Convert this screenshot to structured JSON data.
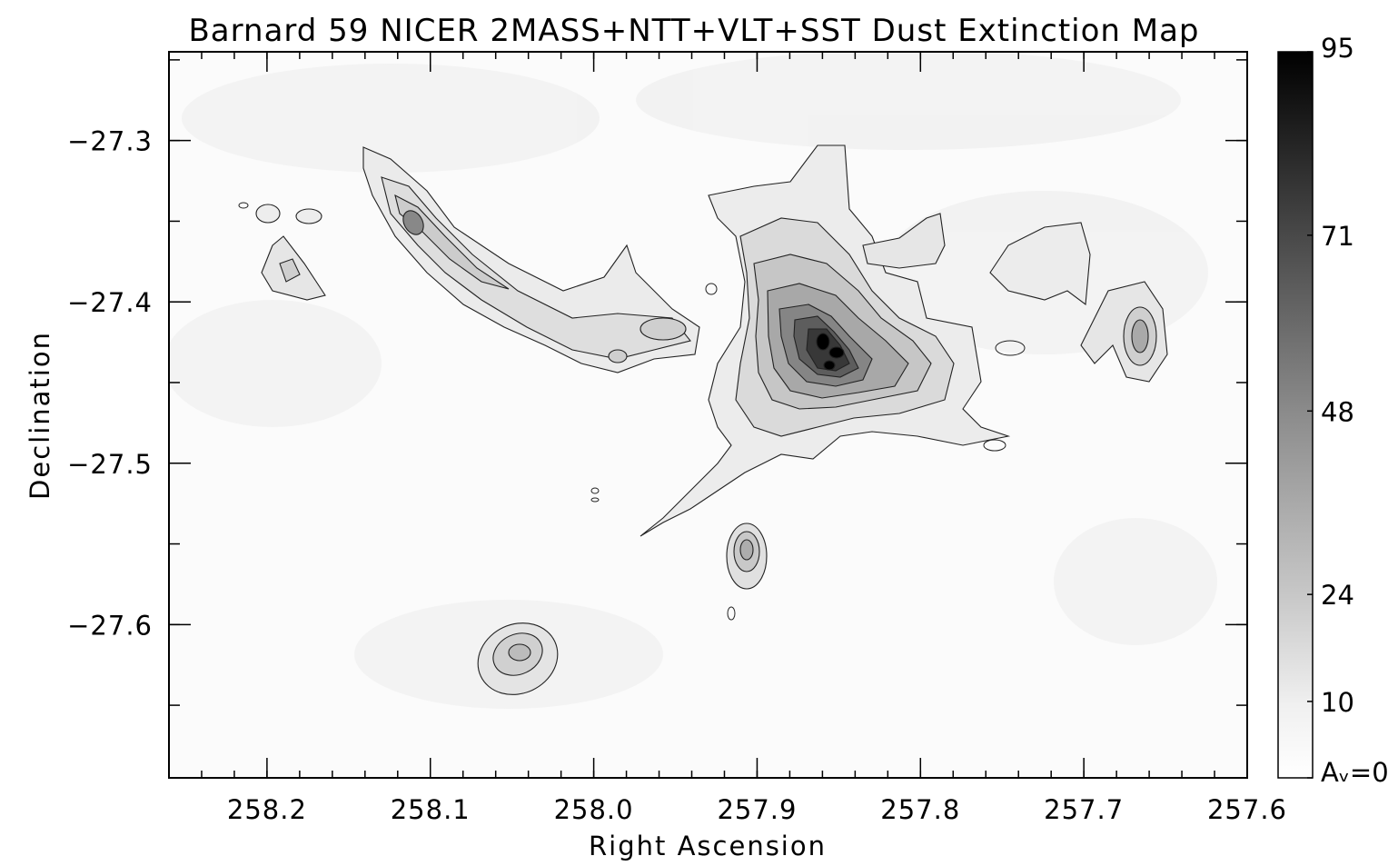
{
  "chart_data": {
    "type": "heatmap",
    "title": "Barnard 59 NICER 2MASS+NTT+VLT+SST Dust Extinction Map",
    "xlabel": "Right Ascension",
    "ylabel": "Declination",
    "xlim": [
      258.26,
      257.6
    ],
    "ylim": [
      -27.695,
      -27.245
    ],
    "x_ticks": [
      {
        "value": 258.2,
        "label": "258.2"
      },
      {
        "value": 258.1,
        "label": "258.1"
      },
      {
        "value": 258.0,
        "label": "258.0"
      },
      {
        "value": 257.9,
        "label": "257.9"
      },
      {
        "value": 257.8,
        "label": "257.8"
      },
      {
        "value": 257.7,
        "label": "257.7"
      },
      {
        "value": 257.6,
        "label": "257.6"
      }
    ],
    "x_minor_step": 0.02,
    "y_ticks": [
      {
        "value": -27.3,
        "label": "−27.3"
      },
      {
        "value": -27.4,
        "label": "−27.4"
      },
      {
        "value": -27.5,
        "label": "−27.5"
      },
      {
        "value": -27.6,
        "label": "−27.6"
      }
    ],
    "y_minor_step": 0.05,
    "colorbar": {
      "min": 0,
      "max": 95,
      "ticks": [
        {
          "value": 95,
          "label": "95"
        },
        {
          "value": 71,
          "label": "71"
        },
        {
          "value": 48,
          "label": "48"
        },
        {
          "value": 24,
          "label": "24"
        },
        {
          "value": 10,
          "label": "10"
        },
        {
          "value": 0,
          "label": "Aᵥ=0"
        }
      ],
      "colormap": "grayscale, white=0, black=max"
    },
    "features": [
      {
        "ra": 257.855,
        "dec": -27.435,
        "peak_av": 95
      },
      {
        "ra": 258.108,
        "dec": -27.36,
        "peak_av": 35
      },
      {
        "ra": 257.66,
        "dec": -27.43,
        "peak_av": 40
      },
      {
        "ra": 258.19,
        "dec": -27.39,
        "peak_av": 15
      },
      {
        "ra": 258.04,
        "dec": -27.625,
        "peak_av": 18
      },
      {
        "ra": 257.9,
        "dec": -27.56,
        "peak_av": 22
      }
    ],
    "contours": true,
    "grid": false
  }
}
